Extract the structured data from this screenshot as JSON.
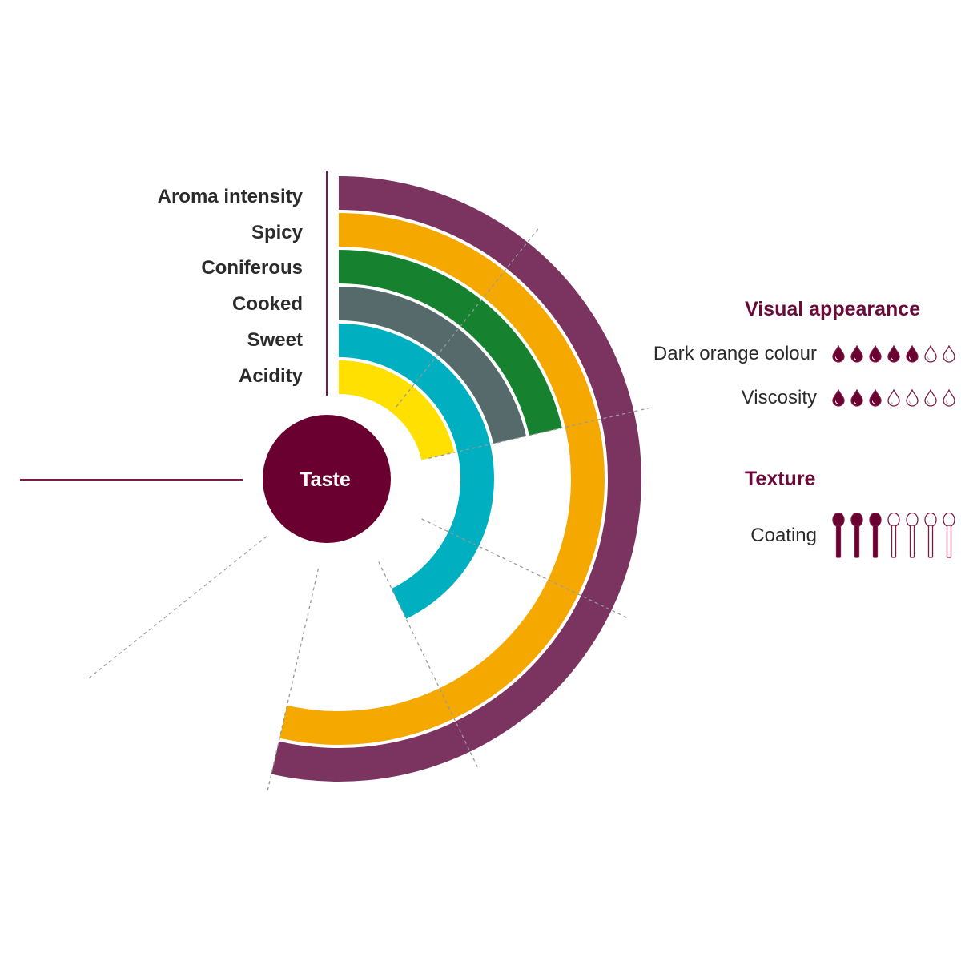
{
  "chart_data": {
    "type": "radial-bar",
    "center_label": "Taste",
    "scale_max": 7,
    "categories": [
      "Aroma intensity",
      "Spicy",
      "Coniferous",
      "Cooked",
      "Sweet",
      "Acidity"
    ],
    "values": [
      5,
      5,
      2,
      2,
      4,
      2
    ],
    "colors": [
      "#7b3460",
      "#f5a800",
      "#16822f",
      "#566a6b",
      "#00b0c0",
      "#ffe000"
    ],
    "grid": "dashed radial lines"
  },
  "visual_appearance": {
    "title": "Visual appearance",
    "items": [
      {
        "label": "Dark orange colour",
        "value": 5,
        "max": 7,
        "icon": "drop-icon"
      },
      {
        "label": "Viscosity",
        "value": 3,
        "max": 7,
        "icon": "drop-icon"
      }
    ]
  },
  "texture": {
    "title": "Texture",
    "items": [
      {
        "label": "Coating",
        "value": 3,
        "max": 7,
        "icon": "spoon-icon"
      }
    ]
  },
  "colors": {
    "accent": "#6a0030",
    "text": "#2b2b2b"
  }
}
